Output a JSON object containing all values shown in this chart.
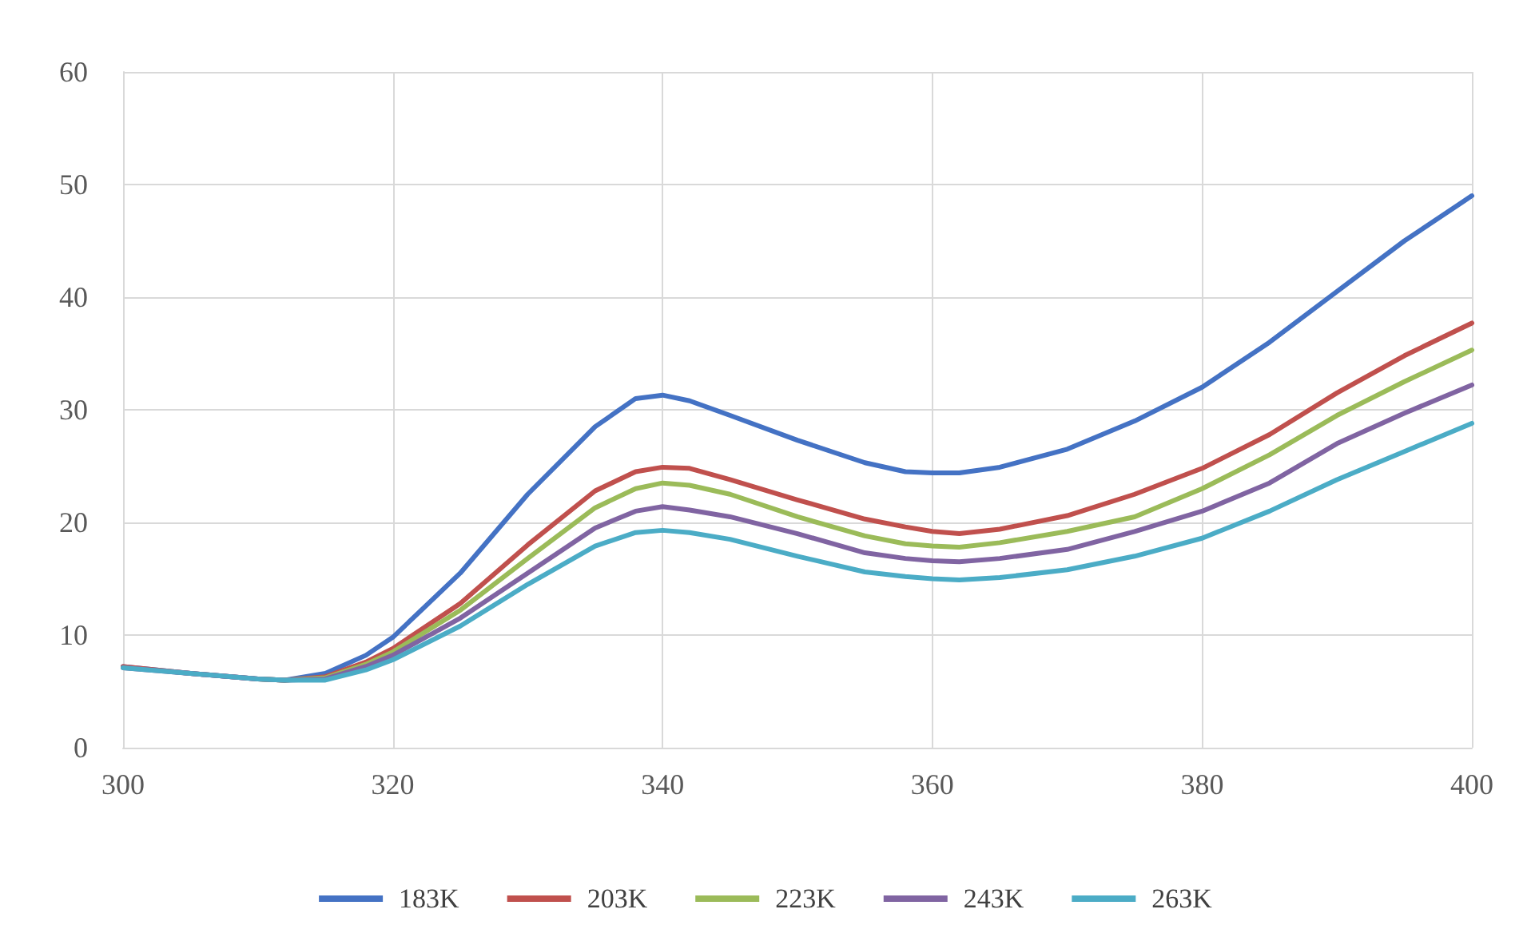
{
  "chart_data": {
    "type": "line",
    "x": [
      300,
      305,
      310,
      312,
      315,
      318,
      320,
      325,
      330,
      335,
      338,
      340,
      342,
      345,
      350,
      355,
      358,
      360,
      362,
      365,
      370,
      375,
      380,
      385,
      390,
      395,
      400
    ],
    "series": [
      {
        "name": "183K",
        "color": "#4472c4",
        "values": [
          7.2,
          6.6,
          6.1,
          6.0,
          6.6,
          8.2,
          9.8,
          15.5,
          22.5,
          28.5,
          31.0,
          31.3,
          30.8,
          29.5,
          27.3,
          25.3,
          24.5,
          24.4,
          24.4,
          24.9,
          26.5,
          29.0,
          32.0,
          36.0,
          40.5,
          45.0,
          49.0
        ]
      },
      {
        "name": "203K",
        "color": "#c0504d",
        "values": [
          7.2,
          6.6,
          6.1,
          6.0,
          6.3,
          7.6,
          8.8,
          12.8,
          18.0,
          22.8,
          24.5,
          24.9,
          24.8,
          23.8,
          22.0,
          20.3,
          19.6,
          19.2,
          19.0,
          19.4,
          20.6,
          22.5,
          24.8,
          27.8,
          31.5,
          34.8,
          37.7
        ]
      },
      {
        "name": "223K",
        "color": "#9bbb59",
        "values": [
          null,
          null,
          6.1,
          6.0,
          6.2,
          7.4,
          8.5,
          12.2,
          16.8,
          21.3,
          23.0,
          23.5,
          23.3,
          22.5,
          20.5,
          18.8,
          18.1,
          17.9,
          17.8,
          18.2,
          19.2,
          20.5,
          23.0,
          26.0,
          29.5,
          32.5,
          35.3
        ]
      },
      {
        "name": "243K",
        "color": "#8064a2",
        "values": [
          7.1,
          6.6,
          6.1,
          6.0,
          6.1,
          7.2,
          8.2,
          11.5,
          15.5,
          19.5,
          21.0,
          21.4,
          21.1,
          20.5,
          19.0,
          17.3,
          16.8,
          16.6,
          16.5,
          16.8,
          17.6,
          19.2,
          21.0,
          23.5,
          27.0,
          29.7,
          32.2
        ]
      },
      {
        "name": "263K",
        "color": "#4bacc6",
        "values": [
          7.1,
          6.6,
          6.1,
          6.0,
          6.0,
          6.9,
          7.8,
          10.8,
          14.5,
          17.9,
          19.1,
          19.3,
          19.1,
          18.5,
          17.0,
          15.6,
          15.2,
          15.0,
          14.9,
          15.1,
          15.8,
          17.0,
          18.6,
          21.0,
          23.8,
          26.3,
          28.8
        ]
      }
    ],
    "xlim": [
      300,
      400
    ],
    "xticks": [
      300,
      320,
      340,
      360,
      380,
      400
    ],
    "ylim": [
      0,
      60
    ],
    "yticks": [
      0,
      10,
      20,
      30,
      40,
      50,
      60
    ],
    "grid": true,
    "legend": "bottom",
    "marker": "none",
    "line_style": "solid"
  }
}
